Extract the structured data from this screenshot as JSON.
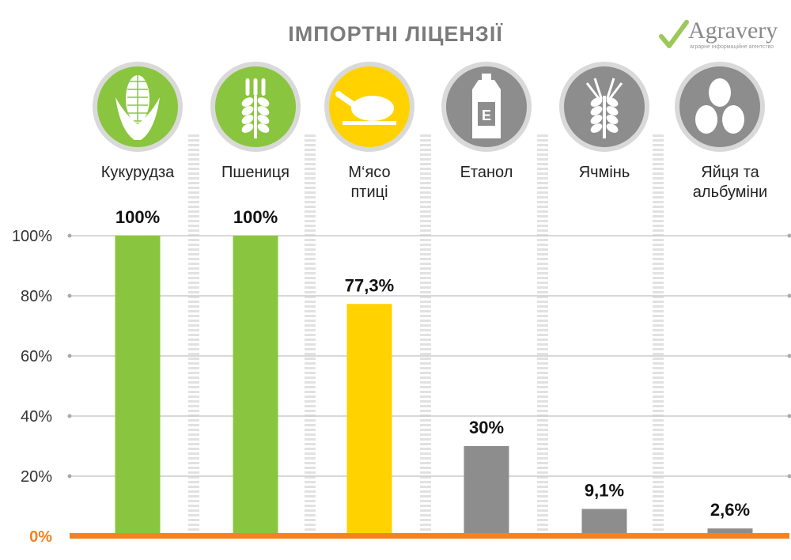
{
  "title": "ІМПОРТНІ ЛІЦЕНЗІЇ",
  "logo": {
    "name": "Agravery",
    "tagline": "аграрне інформаційне агентство"
  },
  "colors": {
    "green": "#8ac53f",
    "yellow": "#ffd200",
    "gray": "#8d8d8d",
    "axis": "#f58220",
    "grid": "#cccccc"
  },
  "chart_data": {
    "type": "bar",
    "categories": [
      "Кукурудза",
      "Пшениця",
      "М‘ясо птиці",
      "Етанол",
      "Ячмінь",
      "Яйця та альбуміни"
    ],
    "category_lines": [
      [
        "Кукурудза"
      ],
      [
        "Пшениця"
      ],
      [
        "М‘ясо",
        "птиці"
      ],
      [
        "Етанол"
      ],
      [
        "Ячмінь"
      ],
      [
        "Яйця та",
        "альбуміни"
      ]
    ],
    "values": [
      100,
      100,
      77.3,
      30,
      9.1,
      2.6
    ],
    "value_labels": [
      "100%",
      "100%",
      "77,3%",
      "30%",
      "9,1%",
      "2,6%"
    ],
    "bar_colors": [
      "#8ac53f",
      "#8ac53f",
      "#ffd200",
      "#8d8d8d",
      "#8d8d8d",
      "#8d8d8d"
    ],
    "icons": [
      "corn-icon",
      "wheat-icon",
      "chicken-icon",
      "ethanol-canister-icon",
      "barley-icon",
      "eggs-icon"
    ],
    "yticks": [
      0,
      20,
      40,
      60,
      80,
      100
    ],
    "ytick_labels": [
      "0%",
      "20%",
      "40%",
      "60%",
      "80%",
      "100%"
    ],
    "ylim": [
      0,
      100
    ],
    "grid": true
  }
}
